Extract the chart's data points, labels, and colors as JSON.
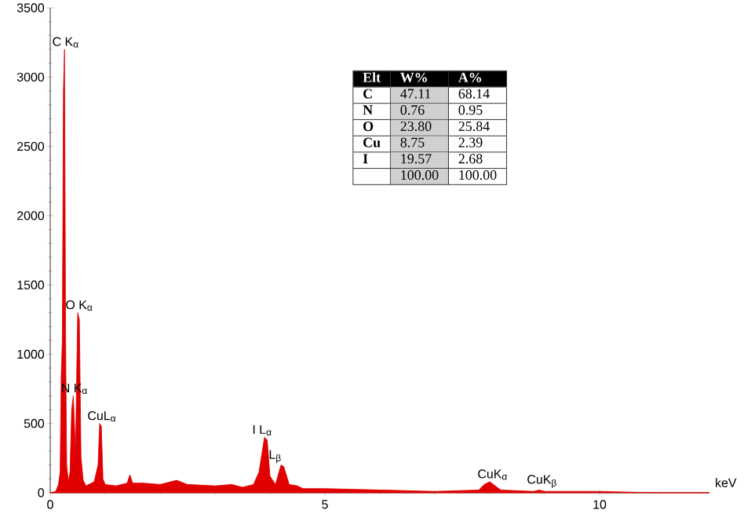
{
  "chart_data": {
    "type": "area",
    "color": "#e00000",
    "xlabel": "keV",
    "x": [
      0,
      0.1,
      0.15,
      0.18,
      0.2,
      0.22,
      0.24,
      0.26,
      0.28,
      0.3,
      0.33,
      0.36,
      0.39,
      0.42,
      0.46,
      0.5,
      0.53,
      0.56,
      0.6,
      0.65,
      0.7,
      0.8,
      0.87,
      0.9,
      0.93,
      0.96,
      1.0,
      1.2,
      1.4,
      1.45,
      1.5,
      1.7,
      2.0,
      2.3,
      2.5,
      3.0,
      3.3,
      3.5,
      3.7,
      3.8,
      3.9,
      3.95,
      4.0,
      4.1,
      4.2,
      4.25,
      4.35,
      4.5,
      4.6,
      5.0,
      6.0,
      7.0,
      7.8,
      7.9,
      8.0,
      8.1,
      8.2,
      8.8,
      8.9,
      9.0,
      10,
      11,
      12
    ],
    "values": [
      0,
      10,
      60,
      150,
      850,
      1100,
      2900,
      3200,
      1100,
      200,
      80,
      150,
      600,
      700,
      300,
      1300,
      1250,
      260,
      90,
      50,
      60,
      80,
      200,
      500,
      480,
      100,
      60,
      50,
      70,
      130,
      70,
      70,
      60,
      90,
      60,
      50,
      60,
      40,
      60,
      150,
      400,
      380,
      120,
      60,
      200,
      190,
      60,
      50,
      30,
      30,
      20,
      10,
      20,
      60,
      80,
      50,
      20,
      10,
      20,
      10,
      10,
      0,
      0
    ],
    "xlim": [
      0,
      12
    ],
    "ylim": [
      0,
      3500
    ],
    "xticks": [
      0,
      5,
      10
    ],
    "yticks": [
      0,
      500,
      1000,
      1500,
      2000,
      2500,
      3000,
      3500
    ],
    "annotations": [
      {
        "text": "C K$_{α}$",
        "x": 0.26,
        "y": 3200
      },
      {
        "text": "O K$_{α}$",
        "x": 0.5,
        "y": 1300
      },
      {
        "text": "N K$_{α}$",
        "x": 0.42,
        "y": 700
      },
      {
        "text": "CuL$_{α}$",
        "x": 0.9,
        "y": 500
      },
      {
        "text": "I L$_{α}$",
        "x": 3.9,
        "y": 400
      },
      {
        "text": "L$_{β}$",
        "x": 4.2,
        "y": 200
      },
      {
        "text": "CuK$_{α}$",
        "x": 8.0,
        "y": 80
      },
      {
        "text": "CuK$_{β}$",
        "x": 8.9,
        "y": 20
      },
      "Elt",
      "W%",
      "A%",
      "C",
      "47.11",
      "68.14",
      "N",
      "0.76",
      "0.95",
      "O",
      "23.80",
      "25.84",
      "Cu",
      "8.75",
      "2.39",
      "I",
      "19.57",
      "2.68",
      "100.00",
      "100.00"
    ]
  }
}
